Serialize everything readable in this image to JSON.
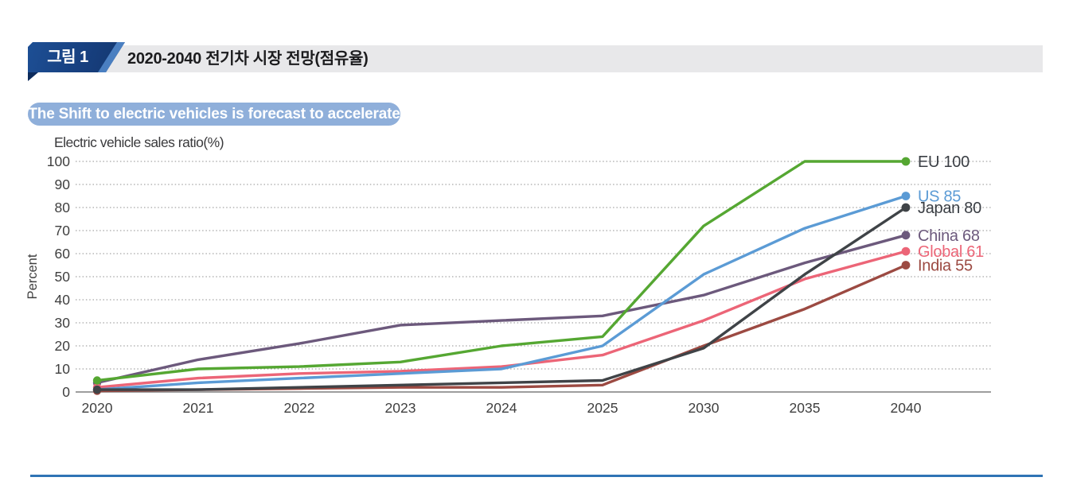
{
  "figure_header": {
    "badge": "그림 1",
    "title": "2020-2040 전기차 시장 전망(점유율)"
  },
  "callout": "The Shift to electric vehicles is forecast to accelerate",
  "chart_data": {
    "type": "line",
    "title": "Electric vehicle sales ratio(%)",
    "xlabel": "",
    "ylabel": "Percent",
    "ylim": [
      0,
      100
    ],
    "ytick_step": 10,
    "grid": "dotted-horizontal",
    "legend_position": "line-end-labels",
    "categories": [
      "2020",
      "2021",
      "2022",
      "2023",
      "2024",
      "2025",
      "2030",
      "2035",
      "2040"
    ],
    "series": [
      {
        "name": "EU",
        "label": "EU 100",
        "color": "#55a732",
        "label_color": "#3a3e44",
        "values": [
          5,
          10,
          11,
          13,
          20,
          24,
          72,
          100,
          100
        ]
      },
      {
        "name": "US",
        "label": "US 85",
        "color": "#5b9bd5",
        "label_color": "#5b9bd5",
        "values": [
          1,
          4,
          6,
          8,
          10,
          20,
          51,
          71,
          85
        ]
      },
      {
        "name": "Japan",
        "label": "Japan 80",
        "color": "#3f4347",
        "label_color": "#3a3e44",
        "values": [
          1,
          1,
          2,
          3,
          4,
          5,
          19,
          51,
          80
        ]
      },
      {
        "name": "China",
        "label": "China 68",
        "color": "#6c597c",
        "label_color": "#6c597c",
        "values": [
          4,
          14,
          21,
          29,
          31,
          33,
          42,
          56,
          68
        ]
      },
      {
        "name": "Global",
        "label": "Global 61",
        "color": "#ec6577",
        "label_color": "#ec6577",
        "values": [
          2,
          6,
          8,
          9,
          11,
          16,
          31,
          49,
          61
        ]
      },
      {
        "name": "India",
        "label": "India 55",
        "color": "#9c4a42",
        "label_color": "#9c4a42",
        "values": [
          0.5,
          1,
          1.5,
          2,
          2,
          3,
          20,
          36,
          55
        ]
      }
    ],
    "draw_order": [
      "China",
      "Global",
      "US",
      "India",
      "Japan",
      "EU"
    ]
  }
}
